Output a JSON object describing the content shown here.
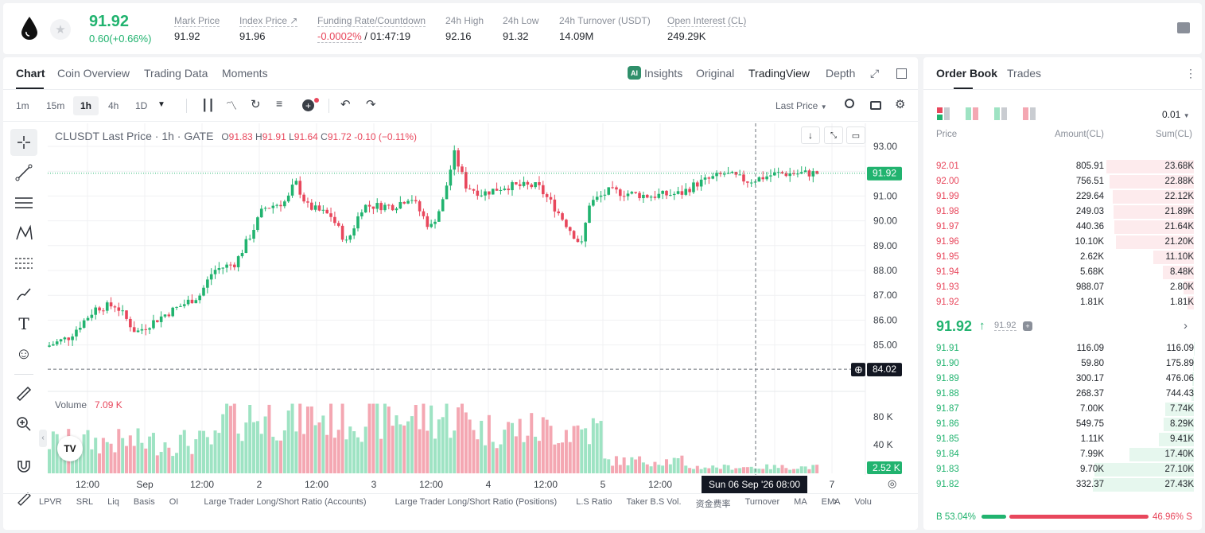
{
  "ticker": {
    "price": "91.92",
    "change": "0.60(+0.66%)",
    "stats": [
      {
        "label": "Mark Price",
        "value": "91.92"
      },
      {
        "label": "Index Price",
        "value": "91.96"
      },
      {
        "label": "Funding Rate/Countdown",
        "value": "-0.0002%",
        "value2": "/ 01:47:19"
      },
      {
        "label": "24h High",
        "value": "92.16"
      },
      {
        "label": "24h Low",
        "value": "91.32"
      },
      {
        "label": "24h Turnover (USDT)",
        "value": "14.09M"
      },
      {
        "label": "Open Interest (CL)",
        "value": "249.29K"
      }
    ]
  },
  "chart_tabs": [
    "Chart",
    "Coin Overview",
    "Trading Data",
    "Moments"
  ],
  "view_tabs": [
    "Insights",
    "Original",
    "TradingView",
    "Depth"
  ],
  "intervals": [
    "1m",
    "15m",
    "1h",
    "4h",
    "1D"
  ],
  "price_source": "Last Price",
  "legend": {
    "symbol": "CLUSDT Last Price · 1h · GATE",
    "o": "91.83",
    "h": "91.91",
    "l": "91.64",
    "c": "91.72",
    "chg": "-0.10 (−0.11%)"
  },
  "price_axis": [
    "93.00",
    "92.00",
    "91.00",
    "90.00",
    "89.00",
    "88.00",
    "87.00",
    "86.00",
    "85.00"
  ],
  "last_price_tag": "91.92",
  "crosshair_price": "84.02",
  "volume": {
    "label": "Volume",
    "value": "7.09 K",
    "axis": [
      "80 K",
      "40 K"
    ],
    "last": "2.52 K"
  },
  "time_axis": [
    "12:00",
    "Sep",
    "12:00",
    "2",
    "12:00",
    "3",
    "12:00",
    "4",
    "12:00",
    "5",
    "12:00",
    "7"
  ],
  "crosshair_time": "Sun 06 Sep '26   08:00",
  "indicators": [
    "LPVR",
    "SRL",
    "Liq",
    "Basis",
    "OI",
    "Large Trader Long/Short Ratio (Accounts)",
    "Large Trader Long/Short Ratio (Positions)",
    "L.S Ratio",
    "Taker B.S Vol.",
    "资金费率",
    "Turnover",
    "MA",
    "EMA",
    "Volu"
  ],
  "orderbook": {
    "tabs": [
      "Order Book",
      "Trades"
    ],
    "precision": "0.01",
    "headers": [
      "Price",
      "Amount(CL)",
      "Sum(CL)"
    ],
    "asks": [
      [
        "92.01",
        "805.91",
        "23.68K"
      ],
      [
        "92.00",
        "756.51",
        "22.88K"
      ],
      [
        "91.99",
        "229.64",
        "22.12K"
      ],
      [
        "91.98",
        "249.03",
        "21.89K"
      ],
      [
        "91.97",
        "440.36",
        "21.64K"
      ],
      [
        "91.96",
        "10.10K",
        "21.20K"
      ],
      [
        "91.95",
        "2.62K",
        "11.10K"
      ],
      [
        "91.94",
        "5.68K",
        "8.48K"
      ],
      [
        "91.93",
        "988.07",
        "2.80K"
      ],
      [
        "91.92",
        "1.81K",
        "1.81K"
      ]
    ],
    "mid": {
      "price": "91.92",
      "mark": "91.92"
    },
    "bids": [
      [
        "91.91",
        "116.09",
        "116.09"
      ],
      [
        "91.90",
        "59.80",
        "175.89"
      ],
      [
        "91.89",
        "300.17",
        "476.06"
      ],
      [
        "91.88",
        "268.37",
        "744.43"
      ],
      [
        "91.87",
        "7.00K",
        "7.74K"
      ],
      [
        "91.86",
        "549.75",
        "8.29K"
      ],
      [
        "91.85",
        "1.11K",
        "9.41K"
      ],
      [
        "91.84",
        "7.99K",
        "17.40K"
      ],
      [
        "91.83",
        "9.70K",
        "27.10K"
      ],
      [
        "91.82",
        "332.37",
        "27.43K"
      ]
    ],
    "ask_depth": [
      0.863,
      0.834,
      0.806,
      0.798,
      0.789,
      0.773,
      0.405,
      0.309,
      0.102,
      0.066
    ],
    "bid_depth": [
      0.004,
      0.006,
      0.017,
      0.027,
      0.282,
      0.302,
      0.343,
      0.634,
      0.988,
      1.0
    ],
    "buy_ratio": "B 53.04%",
    "sell_ratio": "46.96% S",
    "buy_fraction": 0.5304
  },
  "colors": {
    "green": "#21b36f",
    "red": "#e8475c",
    "vol_green": "#9ee3c3",
    "vol_red": "#f4a7b2"
  }
}
